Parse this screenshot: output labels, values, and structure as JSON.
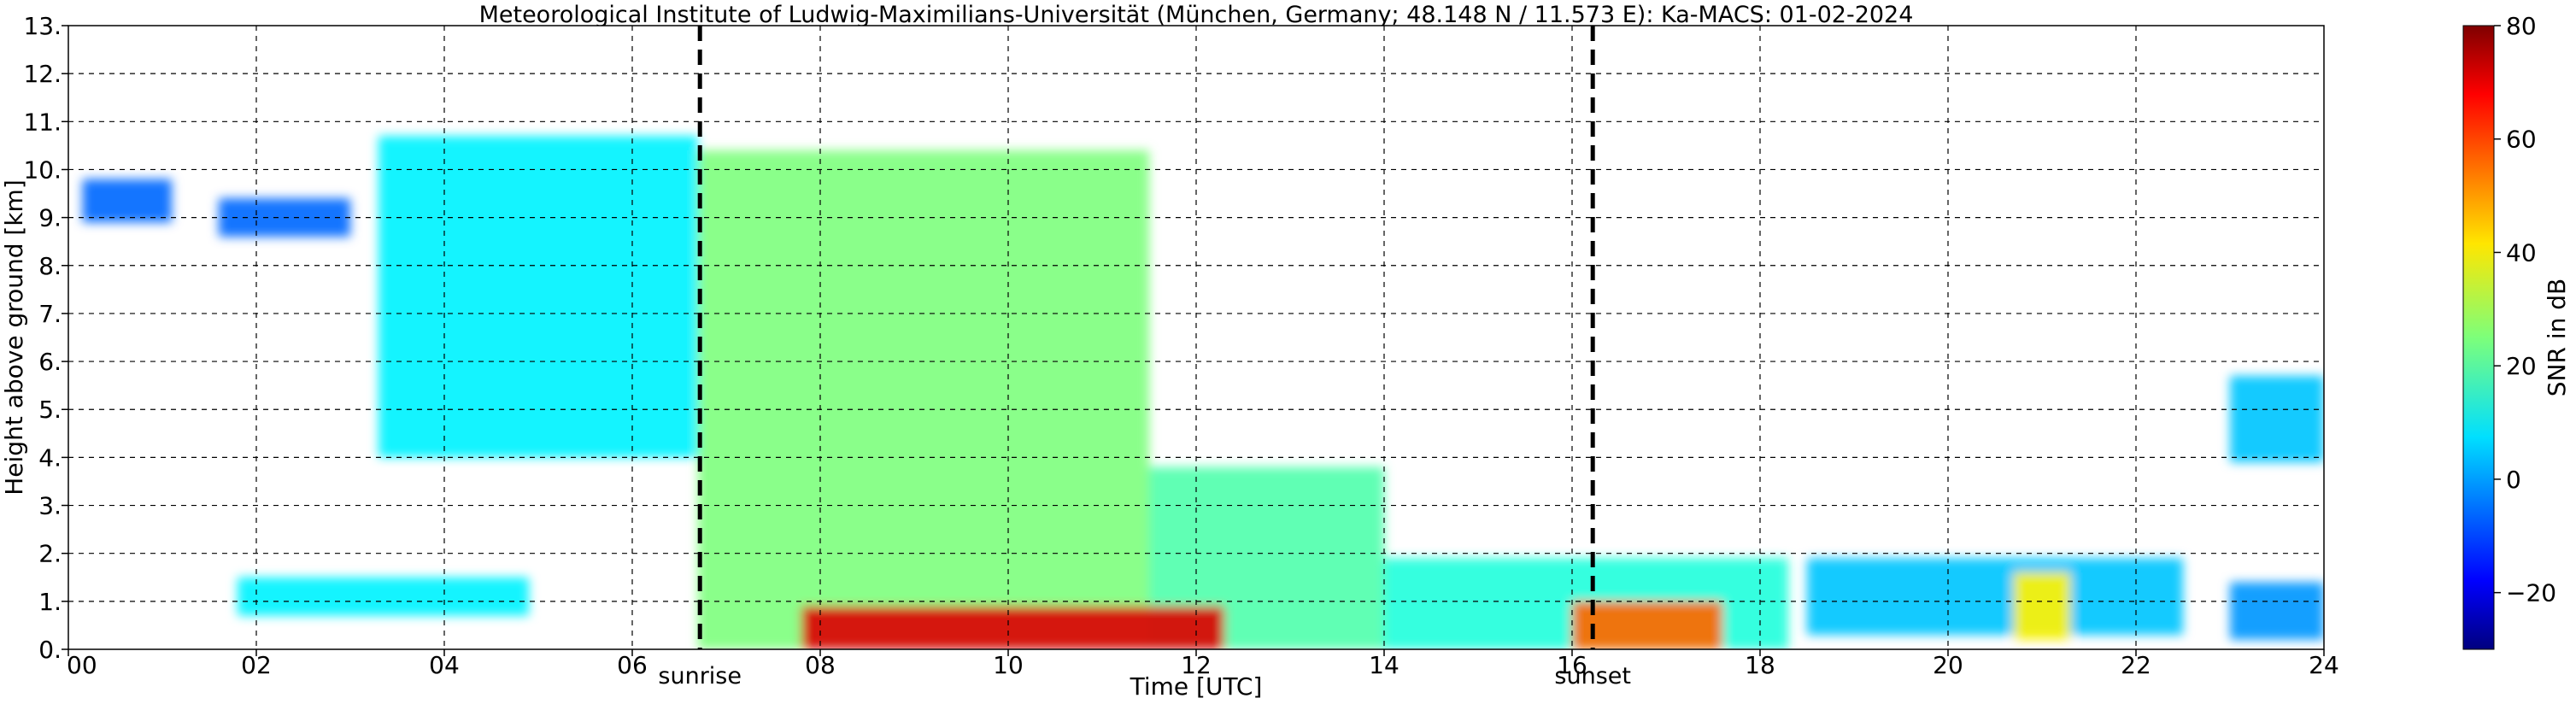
{
  "chart_data": {
    "type": "heatmap",
    "title": "Meteorological Institute of Ludwig-Maximilians-Universität (München, Germany; 48.148 N / 11.573 E):    Ka-MACS: 01-02-2024",
    "xlabel": "Time [UTC]",
    "ylabel": "Height above ground [km]",
    "xlim": [
      0,
      24
    ],
    "ylim": [
      0,
      13
    ],
    "x_ticks": [
      "00",
      "02",
      "04",
      "06",
      "08",
      "10",
      "12",
      "14",
      "16",
      "18",
      "20",
      "22",
      "24"
    ],
    "y_ticks": [
      "0.",
      "1.",
      "2.",
      "3.",
      "4.",
      "5.",
      "6.",
      "7.",
      "8.",
      "9.",
      "10.",
      "11.",
      "12.",
      "13."
    ],
    "grid": true,
    "colorbar": {
      "label": "SNR in dB",
      "range": [
        -30,
        80
      ],
      "ticks": [
        "80",
        "60",
        "40",
        "20",
        "0",
        "−20"
      ],
      "colormap": "jet"
    },
    "events": [
      {
        "label": "sunrise",
        "x": 6.72
      },
      {
        "label": "sunset",
        "x": 16.22
      }
    ],
    "echo_regions": [
      {
        "x": [
          0.15,
          1.1
        ],
        "base": 8.9,
        "top": 9.8,
        "snr": -5
      },
      {
        "x": [
          1.6,
          3.0
        ],
        "base": 8.6,
        "top": 9.4,
        "snr": -5
      },
      {
        "x": [
          3.3,
          6.7
        ],
        "base": 4.0,
        "top": 10.7,
        "snr": 10
      },
      {
        "x": [
          6.7,
          11.5
        ],
        "base": 0.0,
        "top": 10.4,
        "snr": 25
      },
      {
        "x": [
          11.5,
          14.0
        ],
        "base": 0.0,
        "top": 3.8,
        "snr": 20
      },
      {
        "x": [
          7.8,
          12.3
        ],
        "base": 0.0,
        "top": 0.9,
        "snr": 70
      },
      {
        "x": [
          14.0,
          18.3
        ],
        "base": 0.0,
        "top": 1.9,
        "snr": 15
      },
      {
        "x": [
          16.0,
          17.6
        ],
        "base": 0.0,
        "top": 1.0,
        "snr": 55
      },
      {
        "x": [
          18.5,
          22.5
        ],
        "base": 0.3,
        "top": 1.9,
        "snr": 5
      },
      {
        "x": [
          20.7,
          21.3
        ],
        "base": 0.2,
        "top": 1.6,
        "snr": 40
      },
      {
        "x": [
          1.8,
          4.9
        ],
        "base": 0.7,
        "top": 1.5,
        "snr": 10
      },
      {
        "x": [
          23.0,
          24.0
        ],
        "base": 3.9,
        "top": 5.7,
        "snr": 5
      },
      {
        "x": [
          23.0,
          24.0
        ],
        "base": 0.2,
        "top": 1.4,
        "snr": 0
      }
    ]
  }
}
